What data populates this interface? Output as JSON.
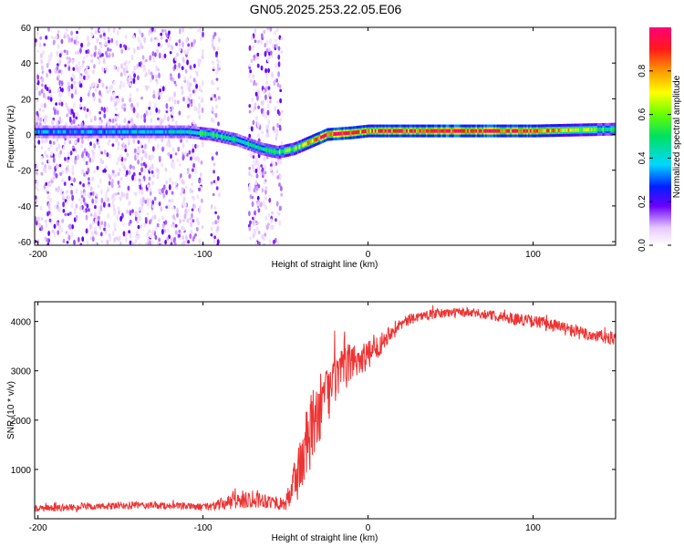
{
  "title": "GN05.2025.253.22.05.E06",
  "colors": {
    "snr_line": "#ee3333",
    "axis": "#000000",
    "background": "#ffffff"
  },
  "colorbar": {
    "label": "Normalized spectral amplitude",
    "ticks": [
      "0.0",
      "0.2",
      "0.4",
      "0.6",
      "0.8"
    ],
    "tick_values": [
      0.0,
      0.2,
      0.4,
      0.6,
      0.8
    ],
    "range": [
      0.0,
      1.0
    ]
  },
  "chart_data": [
    {
      "type": "heatmap",
      "xlabel": "Height of straight line (km)",
      "ylabel": "Frequency (Hz)",
      "xlim": [
        -202,
        150
      ],
      "ylim": [
        -62,
        60
      ],
      "xticks": [
        -200,
        -100,
        0,
        100
      ],
      "xtick_labels": [
        "-200",
        "-100",
        "0",
        "100"
      ],
      "yticks": [
        -60,
        -40,
        -20,
        0,
        20,
        40,
        60
      ],
      "ytick_labels": [
        "-60",
        "-40",
        "-20",
        "0",
        "20",
        "40",
        "60"
      ],
      "ridge_frequency_hz": {
        "x": [
          -202,
          -150,
          -110,
          -95,
          -80,
          -65,
          -55,
          -45,
          -35,
          -25,
          -10,
          0,
          10,
          50,
          100,
          150
        ],
        "freq": [
          1.5,
          1.5,
          1.5,
          0,
          -3,
          -8,
          -10,
          -8,
          -4,
          0,
          1,
          2,
          2,
          2,
          2,
          3
        ],
        "amplitude": [
          0.35,
          0.35,
          0.4,
          0.55,
          0.45,
          0.45,
          0.55,
          0.6,
          0.75,
          0.95,
          0.9,
          0.8,
          0.85,
          0.95,
          0.9,
          0.45
        ]
      },
      "noise_clusters_x_ranges": [
        [
          -202,
          -100
        ],
        [
          -95,
          -90
        ],
        [
          -72,
          -52
        ]
      ]
    },
    {
      "type": "line",
      "xlabel": "Height of straight line (km)",
      "ylabel": "SNR (10 * v/v)",
      "xlim": [
        -202,
        150
      ],
      "ylim": [
        0,
        4400
      ],
      "xticks": [
        -200,
        -100,
        0,
        100
      ],
      "xtick_labels": [
        "-200",
        "-100",
        "0",
        "100"
      ],
      "yticks": [
        1000,
        2000,
        3000,
        4000
      ],
      "ytick_labels": [
        "1000",
        "2000",
        "3000",
        "4000"
      ],
      "series": [
        {
          "name": "SNR",
          "x": [
            -202,
            -180,
            -160,
            -140,
            -120,
            -100,
            -90,
            -80,
            -70,
            -60,
            -50,
            -45,
            -40,
            -35,
            -30,
            -25,
            -20,
            -15,
            -10,
            -5,
            0,
            5,
            10,
            15,
            20,
            30,
            40,
            50,
            60,
            70,
            80,
            90,
            100,
            110,
            120,
            130,
            140,
            150
          ],
          "values": [
            200,
            230,
            250,
            270,
            260,
            240,
            280,
            360,
            420,
            360,
            280,
            700,
            1200,
            1700,
            2200,
            2500,
            2800,
            3000,
            3200,
            3250,
            3300,
            3450,
            3650,
            3850,
            3950,
            4100,
            4150,
            4180,
            4180,
            4150,
            4100,
            4050,
            4000,
            3950,
            3850,
            3750,
            3700,
            3650
          ],
          "noise_amplitude": [
            70,
            70,
            70,
            80,
            70,
            70,
            120,
            180,
            200,
            150,
            120,
            500,
            700,
            800,
            700,
            600,
            500,
            450,
            400,
            350,
            300,
            250,
            200,
            150,
            120,
            100,
            100,
            100,
            100,
            100,
            110,
            120,
            130,
            140,
            140,
            140,
            140,
            140
          ]
        }
      ]
    }
  ]
}
